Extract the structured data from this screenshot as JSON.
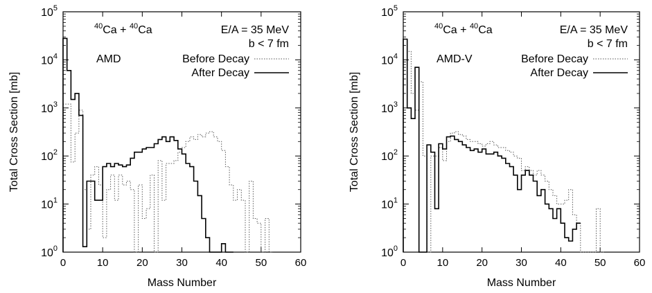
{
  "chart_data": [
    {
      "type": "line",
      "xlabel": "Mass Number",
      "ylabel": "Total Cross Section [mb]",
      "xlim": [
        0,
        60
      ],
      "ylim": [
        1,
        100000
      ],
      "yscale": "log",
      "x_ticks": [
        "0",
        "10",
        "20",
        "30",
        "40",
        "50",
        "60"
      ],
      "y_ticks": [
        {
          "base": "10",
          "exp": "0"
        },
        {
          "base": "10",
          "exp": "1"
        },
        {
          "base": "10",
          "exp": "2"
        },
        {
          "base": "10",
          "exp": "3"
        },
        {
          "base": "10",
          "exp": "4"
        },
        {
          "base": "10",
          "exp": "5"
        }
      ],
      "grid": false,
      "legend_position": "top-right",
      "annotations": {
        "reaction": {
          "n1": "40",
          "el1": "Ca",
          "plus": " + ",
          "n2": "40",
          "el2": "Ca"
        },
        "energy": "E/A = 35 MeV",
        "impact": "b < 7 fm",
        "model": "AMD"
      },
      "series": [
        {
          "name": "Before Decay",
          "style": "dotted",
          "x": [
            0,
            1,
            2,
            3,
            4,
            5,
            6,
            7,
            8,
            9,
            10,
            11,
            12,
            13,
            14,
            15,
            16,
            17,
            18,
            19,
            20,
            21,
            22,
            23,
            24,
            25,
            26,
            27,
            28,
            29,
            30,
            31,
            32,
            33,
            34,
            35,
            36,
            37,
            38,
            39,
            40,
            41,
            42,
            43,
            44,
            45,
            46,
            47,
            48,
            49,
            50,
            51,
            52
          ],
          "values": [
            1200,
            1200,
            75,
            300,
            900,
            20,
            3,
            40,
            60,
            25,
            2,
            20,
            40,
            12,
            40,
            25,
            30,
            20,
            1,
            25,
            5,
            8,
            40,
            1,
            80,
            12,
            70,
            70,
            80,
            120,
            150,
            200,
            250,
            220,
            280,
            250,
            300,
            320,
            250,
            200,
            130,
            60,
            25,
            12,
            20,
            12,
            1,
            30,
            5,
            4,
            1,
            5,
            1
          ]
        },
        {
          "name": "After Decay",
          "style": "solid",
          "x": [
            0,
            1,
            2,
            3,
            4,
            5,
            6,
            7,
            8,
            9,
            10,
            11,
            12,
            13,
            14,
            15,
            16,
            17,
            18,
            19,
            20,
            21,
            22,
            23,
            24,
            25,
            26,
            27,
            28,
            29,
            30,
            31,
            32,
            33,
            34,
            35,
            36,
            37,
            38,
            39,
            40,
            41,
            42
          ],
          "values": [
            28000,
            6000,
            1500,
            2000,
            700,
            1.3,
            30,
            30,
            12,
            12,
            60,
            70,
            60,
            70,
            65,
            60,
            65,
            90,
            120,
            120,
            140,
            150,
            150,
            180,
            220,
            250,
            200,
            250,
            210,
            140,
            110,
            70,
            60,
            30,
            15,
            5,
            2,
            1,
            1,
            1,
            1.5,
            1,
            1
          ]
        }
      ]
    },
    {
      "type": "line",
      "xlabel": "Mass Number",
      "ylabel": "Total Cross Section [mb]",
      "xlim": [
        0,
        60
      ],
      "ylim": [
        1,
        100000
      ],
      "yscale": "log",
      "x_ticks": [
        "0",
        "10",
        "20",
        "30",
        "40",
        "50",
        "60"
      ],
      "y_ticks": [
        {
          "base": "10",
          "exp": "0"
        },
        {
          "base": "10",
          "exp": "1"
        },
        {
          "base": "10",
          "exp": "2"
        },
        {
          "base": "10",
          "exp": "3"
        },
        {
          "base": "10",
          "exp": "4"
        },
        {
          "base": "10",
          "exp": "5"
        }
      ],
      "grid": false,
      "legend_position": "top-right",
      "annotations": {
        "reaction": {
          "n1": "40",
          "el1": "Ca",
          "plus": " + ",
          "n2": "40",
          "el2": "Ca"
        },
        "energy": "E/A = 35 MeV",
        "impact": "b < 7 fm",
        "model": "AMD-V"
      },
      "series": [
        {
          "name": "Before Decay",
          "style": "dotted",
          "x": [
            0,
            1,
            2,
            3,
            4,
            5,
            6,
            7,
            8,
            9,
            10,
            11,
            12,
            13,
            14,
            15,
            16,
            17,
            18,
            19,
            20,
            21,
            22,
            23,
            24,
            25,
            26,
            27,
            28,
            29,
            30,
            31,
            32,
            33,
            34,
            35,
            36,
            37,
            38,
            39,
            40,
            41,
            42,
            43,
            44,
            45,
            46,
            47,
            48,
            49,
            50
          ],
          "values": [
            5000,
            15000,
            2000,
            900,
            3500,
            100,
            1,
            100,
            100,
            150,
            80,
            200,
            300,
            320,
            280,
            260,
            220,
            200,
            200,
            180,
            160,
            180,
            200,
            170,
            150,
            150,
            130,
            120,
            100,
            90,
            50,
            60,
            50,
            40,
            50,
            40,
            30,
            20,
            15,
            10,
            10,
            12,
            20,
            6,
            4,
            1,
            1,
            1,
            1,
            8,
            1
          ]
        },
        {
          "name": "After Decay",
          "style": "solid",
          "x": [
            0,
            1,
            2,
            3,
            4,
            5,
            6,
            7,
            8,
            9,
            10,
            11,
            12,
            13,
            14,
            15,
            16,
            17,
            18,
            19,
            20,
            21,
            22,
            23,
            24,
            25,
            26,
            27,
            28,
            29,
            30,
            31,
            32,
            33,
            34,
            35,
            36,
            37,
            38,
            39,
            40,
            41,
            42,
            43,
            44
          ],
          "values": [
            27000,
            1000,
            600,
            7000,
            1,
            1,
            170,
            120,
            8,
            180,
            140,
            250,
            260,
            220,
            200,
            170,
            150,
            130,
            140,
            120,
            140,
            110,
            110,
            120,
            100,
            90,
            70,
            60,
            40,
            20,
            40,
            50,
            40,
            30,
            15,
            20,
            10,
            8,
            5,
            8,
            4,
            2,
            1.7,
            3,
            4
          ]
        }
      ]
    }
  ]
}
